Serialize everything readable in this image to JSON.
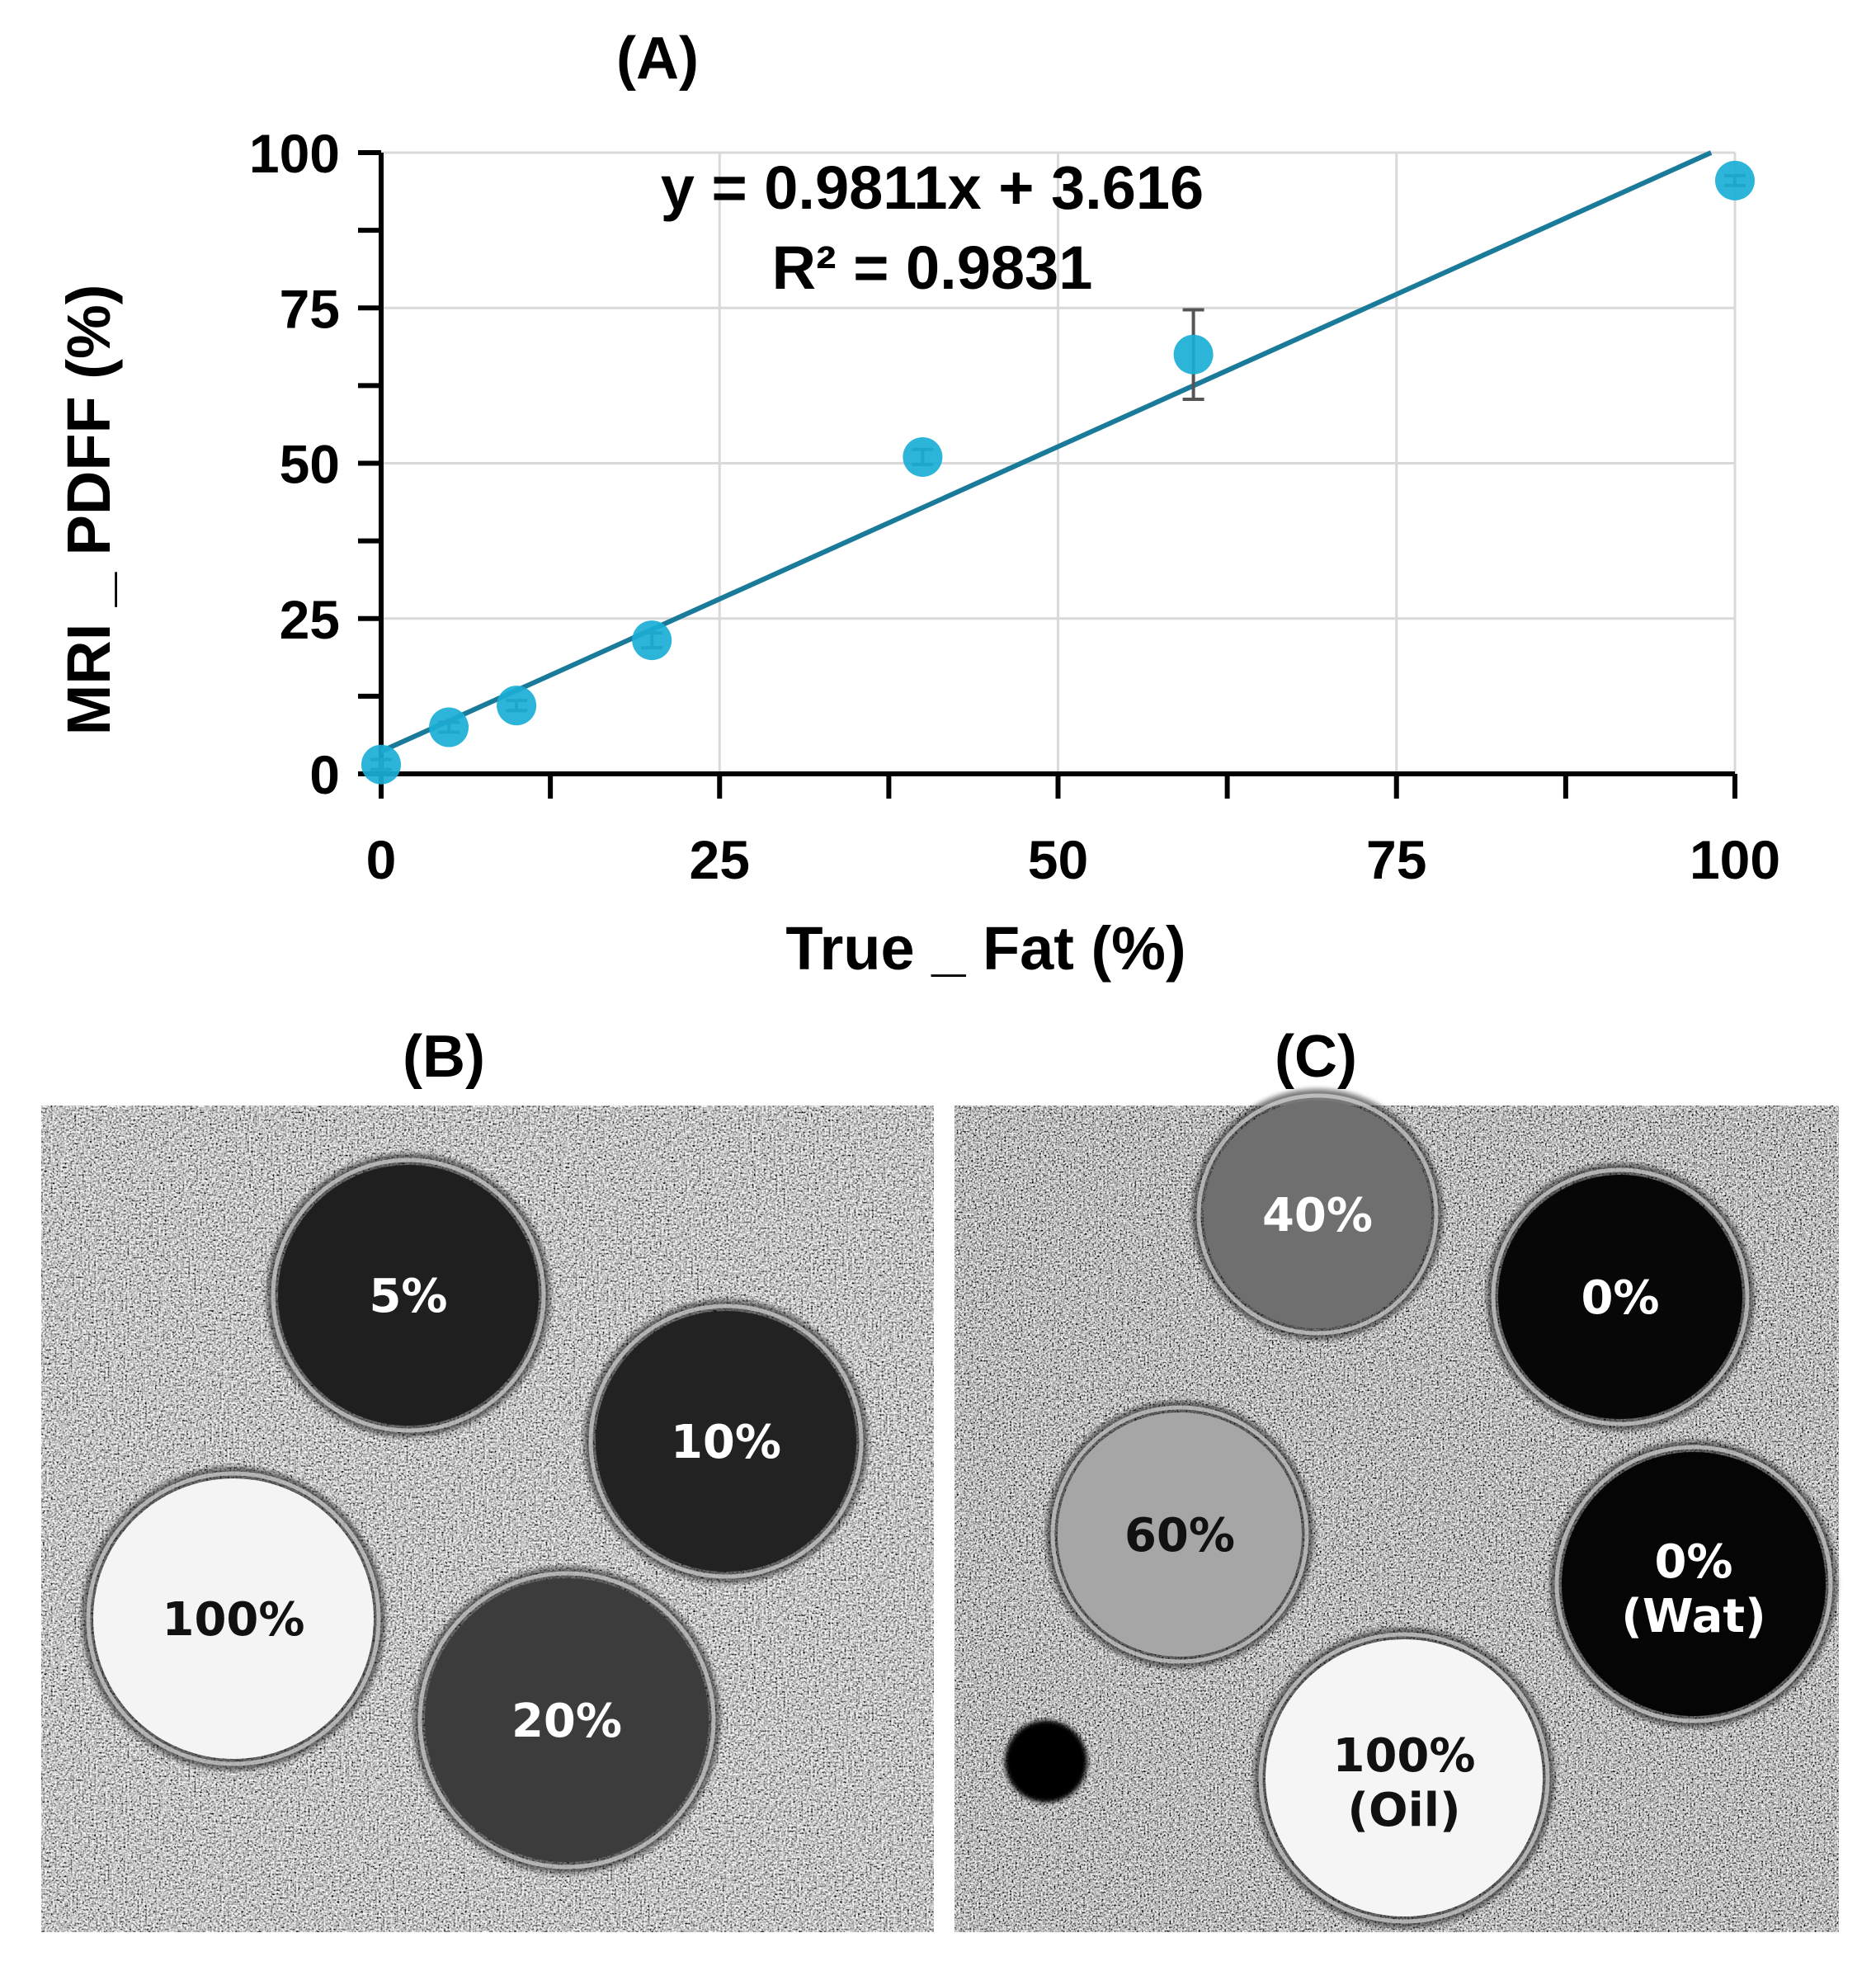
{
  "panel_labels": {
    "a": "(A)",
    "b": "(B)",
    "c": "(C)"
  },
  "chart_data": {
    "type": "scatter",
    "title": "(A)",
    "xlabel": "True _ Fat (%)",
    "ylabel": "MRI _ PDFF (%)",
    "xlim": [
      0,
      100
    ],
    "ylim": [
      0,
      100
    ],
    "x_ticks": [
      0,
      25,
      50,
      75,
      100
    ],
    "y_ticks": [
      0,
      25,
      50,
      75,
      100
    ],
    "grid": true,
    "series": [
      {
        "points": [
          {
            "x": 0,
            "y": 1.5,
            "err": 0.8
          },
          {
            "x": 5,
            "y": 7.5,
            "err": 0.8
          },
          {
            "x": 10,
            "y": 11,
            "err": 0.8
          },
          {
            "x": 20,
            "y": 21.5,
            "err": 1.2
          },
          {
            "x": 40,
            "y": 51,
            "err": 1.2
          },
          {
            "x": 60,
            "y": 67.5,
            "err": 7.2
          },
          {
            "x": 100,
            "y": 95.5,
            "err": 0.8
          }
        ],
        "color": "#1aaed6"
      }
    ],
    "trendline": {
      "slope": 0.9811,
      "intercept": 3.616,
      "color": "#1a7a9a"
    },
    "annotations": [
      "y = 0.9811x + 3.616",
      "R² = 0.9831"
    ]
  },
  "images": {
    "b": {
      "tubes": [
        {
          "label": "5%",
          "label2": "",
          "gray": "#1f1f1f",
          "text_color": "#ffffff"
        },
        {
          "label": "10%",
          "label2": "",
          "gray": "#222222",
          "text_color": "#ffffff"
        },
        {
          "label": "100%",
          "label2": "",
          "gray": "#f4f4f4",
          "text_color": "#111111"
        },
        {
          "label": "20%",
          "label2": "",
          "gray": "#3c3c3c",
          "text_color": "#ffffff"
        }
      ]
    },
    "c": {
      "tubes": [
        {
          "label": "40%",
          "label2": "",
          "gray": "#6f6f6f",
          "text_color": "#ffffff"
        },
        {
          "label": "0%",
          "label2": "",
          "gray": "#070707",
          "text_color": "#ffffff"
        },
        {
          "label": "60%",
          "label2": "",
          "gray": "#a6a6a6",
          "text_color": "#111111"
        },
        {
          "label": "0%",
          "label2": "(Wat)",
          "gray": "#050505",
          "text_color": "#ffffff"
        },
        {
          "label": "100%",
          "label2": "(Oil)",
          "gray": "#f5f5f5",
          "text_color": "#111111"
        }
      ]
    }
  }
}
